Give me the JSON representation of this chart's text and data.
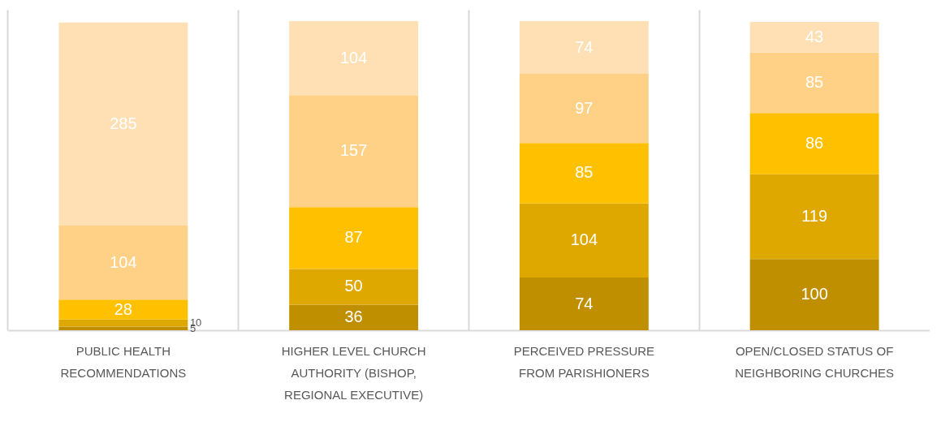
{
  "chart_data": {
    "type": "bar",
    "stacked": true,
    "data_labels": true,
    "grid": "x",
    "tick_labels": "x",
    "legend": false,
    "categories": [
      "PUBLIC HEALTH RECOMMENDATIONS",
      "HIGHER LEVEL CHURCH AUTHORITY (BISHOP, REGIONAL EXECUTIVE)",
      "PERCEIVED PRESSURE FROM PARISHIONERS",
      "OPEN/CLOSED STATUS OF NEIGHBORING CHURCHES"
    ],
    "series": [
      {
        "color": "#bf8f00",
        "values": [
          5,
          36,
          74,
          100
        ]
      },
      {
        "color": "#dfa800",
        "values": [
          10,
          50,
          104,
          119
        ]
      },
      {
        "color": "#ffc000",
        "values": [
          28,
          87,
          85,
          86
        ]
      },
      {
        "color": "#ffd187",
        "values": [
          104,
          157,
          97,
          85
        ]
      },
      {
        "color": "#ffe0b5",
        "values": [
          285,
          104,
          74,
          43
        ]
      }
    ]
  }
}
